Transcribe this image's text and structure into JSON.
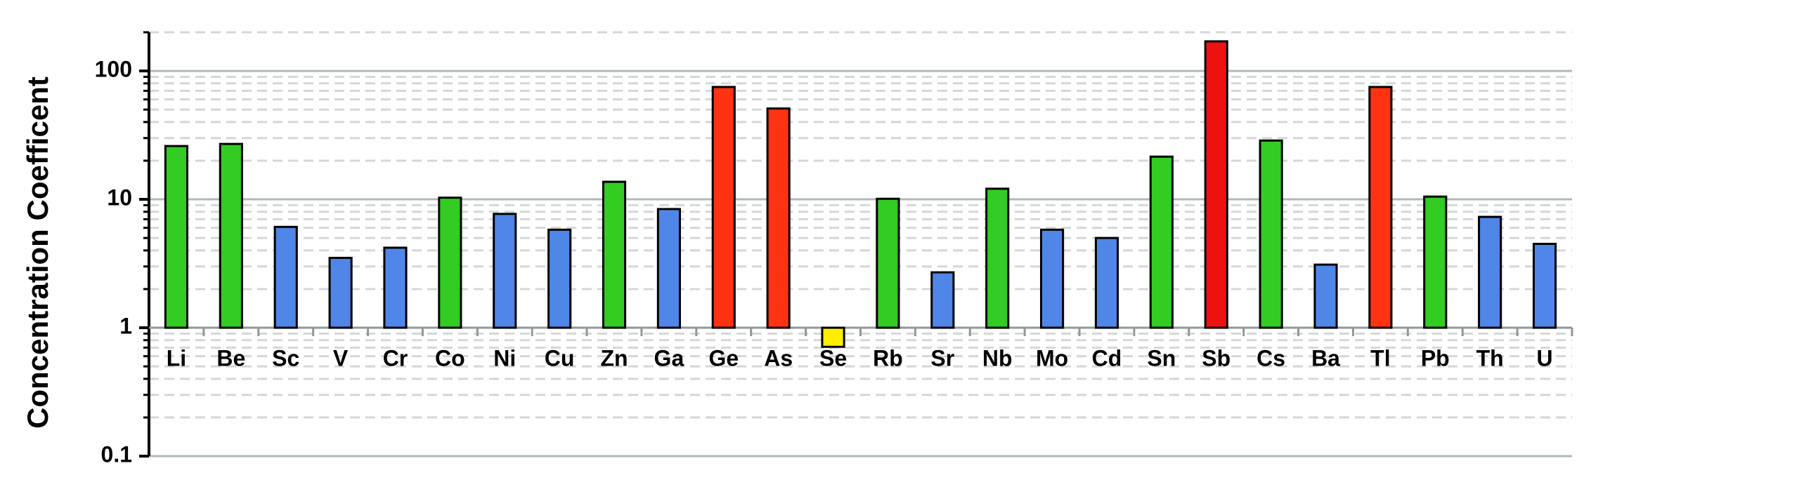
{
  "chart_data": {
    "type": "bar",
    "y_label": "Concentration Coefficent",
    "categories": [
      "Li",
      "Be",
      "Sc",
      "V",
      "Cr",
      "Co",
      "Ni",
      "Cu",
      "Zn",
      "Ga",
      "Ge",
      "As",
      "Se",
      "Rb",
      "Sr",
      "Nb",
      "Mo",
      "Cd",
      "Sn",
      "Sb",
      "Cs",
      "Ba",
      "Tl",
      "Pb",
      "Th",
      "U"
    ],
    "values": [
      26,
      27,
      6.1,
      3.5,
      4.2,
      10.3,
      7.7,
      5.8,
      13.7,
      8.4,
      75,
      51,
      0.71,
      10.1,
      2.7,
      12.1,
      5.8,
      5.0,
      21.5,
      170,
      28.7,
      3.1,
      75,
      10.5,
      7.3,
      4.5
    ],
    "colors": [
      "#33cc22",
      "#33cc22",
      "#4f86e8",
      "#4f86e8",
      "#4f86e8",
      "#33cc22",
      "#4f86e8",
      "#4f86e8",
      "#33cc22",
      "#4f86e8",
      "#ff3311",
      "#ff3311",
      "#ffee00",
      "#33cc22",
      "#4f86e8",
      "#33cc22",
      "#4f86e8",
      "#4f86e8",
      "#33cc22",
      "#ee1111",
      "#33cc22",
      "#4f86e8",
      "#ff3311",
      "#33cc22",
      "#4f86e8",
      "#4f86e8"
    ],
    "ylim": [
      0.1,
      200
    ],
    "yticks": [
      0.1,
      1,
      10,
      100
    ],
    "log_scale": true,
    "grid": true,
    "baseline": 1
  }
}
